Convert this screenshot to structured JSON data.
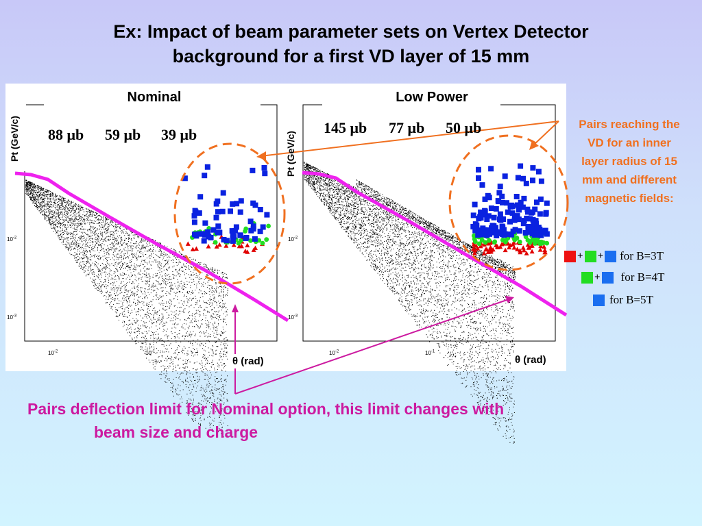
{
  "title_line1": "Ex: Impact of beam parameter sets on Vertex Detector",
  "title_line2": "background for a first VD layer of 15 mm",
  "chart_data": [
    {
      "type": "scatter",
      "title": "Nominal",
      "ylabel": "Pt (GeV/c)",
      "xlabel": "θ (rad)",
      "x_scale": "log",
      "y_scale": "log",
      "x_ticks": [
        "10-2",
        "10-1"
      ],
      "y_ticks": [
        "10-2",
        "10-3"
      ],
      "cross_sections": [
        {
          "value": "88 μb",
          "color": "#e00000"
        },
        {
          "value": "59 μb",
          "color": "#22c822"
        },
        {
          "value": "39 μb",
          "color": "#1a3ee0"
        }
      ],
      "deflection_limit_color": "#ee22ee"
    },
    {
      "type": "scatter",
      "title": "Low Power",
      "ylabel": "Pt (GeV/c)",
      "xlabel": "θ (rad)",
      "x_scale": "log",
      "y_scale": "log",
      "x_ticks": [
        "10-2",
        "10-1"
      ],
      "y_ticks": [
        "10-2",
        "10-3"
      ],
      "cross_sections": [
        {
          "value": "145 μb",
          "color": "#e00000"
        },
        {
          "value": "77 μb",
          "color": "#22c822"
        },
        {
          "value": "50 μb",
          "color": "#1a3ee0"
        }
      ],
      "deflection_limit_color": "#ee22ee"
    }
  ],
  "annotation": [
    "Pairs reaching the",
    "VD for an inner",
    "layer radius of 15",
    "mm and different",
    "magnetic fields:"
  ],
  "legend": [
    {
      "colors": [
        "#ee1111",
        "#22dd22",
        "#1a6ef0"
      ],
      "label": "for B=3T"
    },
    {
      "colors": [
        "#22dd22",
        "#1a6ef0"
      ],
      "label": "for B=4T"
    },
    {
      "colors": [
        "#1a6ef0"
      ],
      "label": "for B=5T"
    }
  ],
  "caption_line1": "Pairs deflection limit for Nominal option,  this limit changes with",
  "caption_line2": "beam size and charge",
  "colors": {
    "annotation": "#f07020",
    "caption": "#cc1aa0",
    "deflection_line": "#ee22ee"
  }
}
